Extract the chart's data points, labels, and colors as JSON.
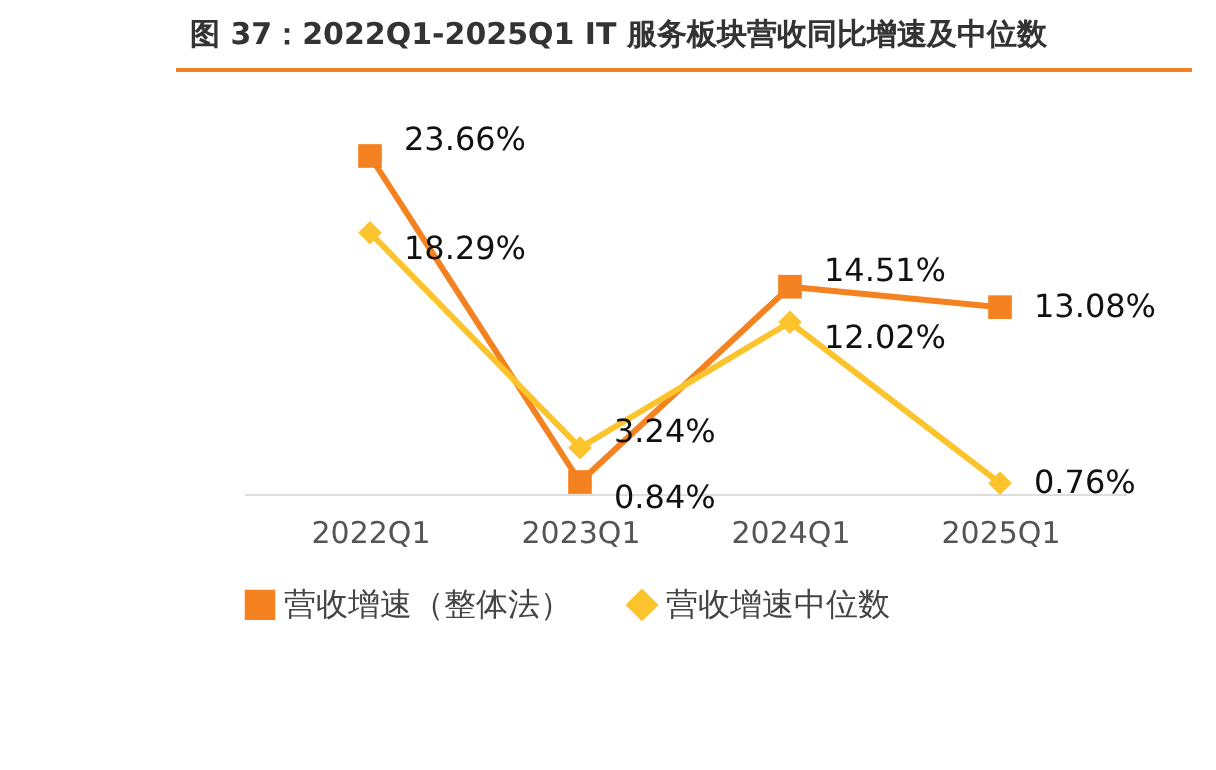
{
  "chart_data": {
    "type": "line",
    "title": "图 37：2022Q1-2025Q1 IT 服务板块营收同比增速及中位数",
    "categories": [
      "2022Q1",
      "2023Q1",
      "2024Q1",
      "2025Q1"
    ],
    "grid": false,
    "legend": "bottom",
    "series": [
      {
        "name": "营收增速（整体法）",
        "color": "#f58220",
        "marker": "square",
        "values": [
          23.66,
          0.84,
          14.51,
          13.08
        ],
        "value_labels": [
          "23.66%",
          "0.84%",
          "14.51%",
          "13.08%"
        ]
      },
      {
        "name": "营收增速中位数",
        "color": "#fcc42c",
        "marker": "diamond",
        "values": [
          18.29,
          3.24,
          12.02,
          0.76
        ],
        "value_labels": [
          "18.29%",
          "3.24%",
          "12.02%",
          "0.76%"
        ]
      }
    ]
  }
}
